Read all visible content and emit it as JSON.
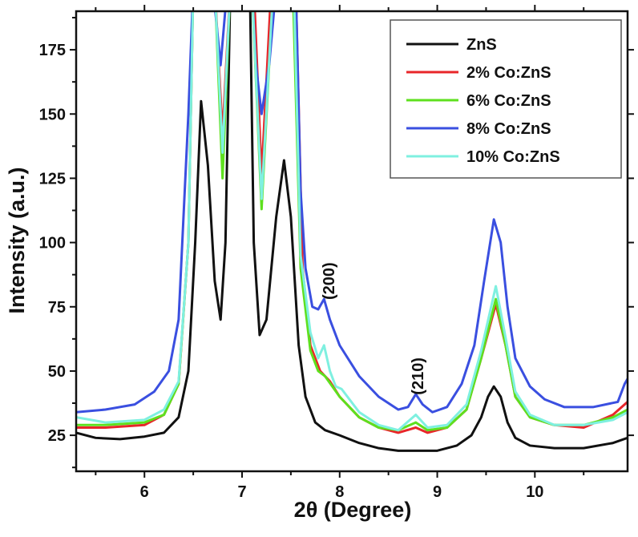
{
  "chart_data": {
    "type": "line",
    "title": "",
    "xlabel": "2θ (Degree)",
    "ylabel": "Intensity (a.u.)",
    "xlim": [
      5.3,
      10.95
    ],
    "ylim": [
      11,
      190
    ],
    "x_ticks": [
      6,
      7,
      8,
      9,
      10
    ],
    "y_ticks": [
      25,
      50,
      75,
      100,
      125,
      150,
      175
    ],
    "grid": false,
    "legend_position": "top-right",
    "annotations": [
      {
        "text": "(200)",
        "x": 7.88,
        "y": 85
      },
      {
        "text": "(210)",
        "x": 8.8,
        "y": 48
      }
    ],
    "series": [
      {
        "name": "ZnS",
        "color": "#111111",
        "points": [
          [
            5.3,
            26
          ],
          [
            5.5,
            24
          ],
          [
            5.75,
            23.5
          ],
          [
            6,
            24.5
          ],
          [
            6.2,
            26
          ],
          [
            6.35,
            32
          ],
          [
            6.45,
            50
          ],
          [
            6.52,
            100
          ],
          [
            6.58,
            155
          ],
          [
            6.65,
            130
          ],
          [
            6.72,
            85
          ],
          [
            6.78,
            70
          ],
          [
            6.83,
            100
          ],
          [
            6.88,
            200
          ],
          [
            7.08,
            200
          ],
          [
            7.12,
            100
          ],
          [
            7.18,
            64
          ],
          [
            7.25,
            70
          ],
          [
            7.35,
            110
          ],
          [
            7.43,
            132
          ],
          [
            7.5,
            110
          ],
          [
            7.58,
            60
          ],
          [
            7.65,
            40
          ],
          [
            7.75,
            30
          ],
          [
            7.85,
            27
          ],
          [
            8.0,
            25
          ],
          [
            8.2,
            22
          ],
          [
            8.4,
            20
          ],
          [
            8.6,
            19
          ],
          [
            8.8,
            19
          ],
          [
            9.0,
            19
          ],
          [
            9.2,
            21
          ],
          [
            9.35,
            25
          ],
          [
            9.45,
            32
          ],
          [
            9.52,
            40
          ],
          [
            9.58,
            44
          ],
          [
            9.65,
            40
          ],
          [
            9.72,
            30
          ],
          [
            9.8,
            24
          ],
          [
            9.95,
            21
          ],
          [
            10.2,
            20
          ],
          [
            10.5,
            20
          ],
          [
            10.8,
            22
          ],
          [
            10.95,
            24
          ]
        ]
      },
      {
        "name": "2% Co:ZnS",
        "color": "#e8262a",
        "points": [
          [
            5.3,
            28
          ],
          [
            5.6,
            28
          ],
          [
            6,
            29
          ],
          [
            6.2,
            33
          ],
          [
            6.35,
            45
          ],
          [
            6.45,
            100
          ],
          [
            6.5,
            200
          ],
          [
            6.72,
            200
          ],
          [
            6.8,
            142
          ],
          [
            6.88,
            200
          ],
          [
            7.12,
            200
          ],
          [
            7.2,
            126
          ],
          [
            7.3,
            200
          ],
          [
            7.55,
            200
          ],
          [
            7.62,
            90
          ],
          [
            7.7,
            60
          ],
          [
            7.8,
            50
          ],
          [
            7.9,
            46
          ],
          [
            8.0,
            40
          ],
          [
            8.2,
            32
          ],
          [
            8.4,
            28
          ],
          [
            8.6,
            26
          ],
          [
            8.78,
            28
          ],
          [
            8.9,
            26
          ],
          [
            9.1,
            28
          ],
          [
            9.3,
            35
          ],
          [
            9.45,
            55
          ],
          [
            9.6,
            76
          ],
          [
            9.7,
            60
          ],
          [
            9.8,
            40
          ],
          [
            9.95,
            32
          ],
          [
            10.2,
            29
          ],
          [
            10.5,
            28
          ],
          [
            10.8,
            33
          ],
          [
            10.95,
            38
          ]
        ]
      },
      {
        "name": "6% Co:ZnS",
        "color": "#5ee01e",
        "points": [
          [
            5.3,
            29
          ],
          [
            5.6,
            29
          ],
          [
            6,
            30
          ],
          [
            6.2,
            33
          ],
          [
            6.35,
            45
          ],
          [
            6.45,
            100
          ],
          [
            6.5,
            200
          ],
          [
            6.72,
            200
          ],
          [
            6.8,
            125
          ],
          [
            6.88,
            200
          ],
          [
            7.1,
            200
          ],
          [
            7.2,
            113
          ],
          [
            7.32,
            200
          ],
          [
            7.52,
            200
          ],
          [
            7.6,
            90
          ],
          [
            7.7,
            58
          ],
          [
            7.78,
            50
          ],
          [
            7.85,
            48
          ],
          [
            8.0,
            40
          ],
          [
            8.2,
            32
          ],
          [
            8.4,
            28
          ],
          [
            8.6,
            27
          ],
          [
            8.78,
            30
          ],
          [
            8.9,
            27
          ],
          [
            9.1,
            28
          ],
          [
            9.3,
            35
          ],
          [
            9.45,
            55
          ],
          [
            9.6,
            78
          ],
          [
            9.7,
            60
          ],
          [
            9.8,
            40
          ],
          [
            9.95,
            32
          ],
          [
            10.2,
            29
          ],
          [
            10.5,
            29
          ],
          [
            10.8,
            32
          ],
          [
            10.95,
            35
          ]
        ]
      },
      {
        "name": "8% Co:ZnS",
        "color": "#3a4fe0",
        "points": [
          [
            5.3,
            34
          ],
          [
            5.6,
            35
          ],
          [
            5.9,
            37
          ],
          [
            6.1,
            42
          ],
          [
            6.25,
            50
          ],
          [
            6.35,
            70
          ],
          [
            6.45,
            150
          ],
          [
            6.5,
            200
          ],
          [
            6.7,
            200
          ],
          [
            6.78,
            169
          ],
          [
            6.85,
            200
          ],
          [
            7.1,
            200
          ],
          [
            7.14,
            170
          ],
          [
            7.2,
            150
          ],
          [
            7.28,
            170
          ],
          [
            7.35,
            200
          ],
          [
            7.55,
            200
          ],
          [
            7.6,
            120
          ],
          [
            7.65,
            90
          ],
          [
            7.72,
            75
          ],
          [
            7.78,
            74
          ],
          [
            7.84,
            78
          ],
          [
            7.9,
            70
          ],
          [
            8.0,
            60
          ],
          [
            8.2,
            48
          ],
          [
            8.4,
            40
          ],
          [
            8.6,
            35
          ],
          [
            8.7,
            36
          ],
          [
            8.78,
            41
          ],
          [
            8.85,
            37
          ],
          [
            8.95,
            34
          ],
          [
            9.1,
            36
          ],
          [
            9.25,
            45
          ],
          [
            9.38,
            60
          ],
          [
            9.48,
            85
          ],
          [
            9.58,
            109
          ],
          [
            9.65,
            100
          ],
          [
            9.72,
            75
          ],
          [
            9.8,
            55
          ],
          [
            9.95,
            44
          ],
          [
            10.1,
            39
          ],
          [
            10.3,
            36
          ],
          [
            10.6,
            36
          ],
          [
            10.85,
            38
          ],
          [
            10.92,
            45
          ],
          [
            10.95,
            47
          ]
        ]
      },
      {
        "name": "10% Co:ZnS",
        "color": "#7ff0e0",
        "points": [
          [
            5.3,
            32
          ],
          [
            5.6,
            30
          ],
          [
            6,
            31
          ],
          [
            6.2,
            35
          ],
          [
            6.35,
            46
          ],
          [
            6.45,
            100
          ],
          [
            6.5,
            200
          ],
          [
            6.72,
            200
          ],
          [
            6.8,
            135
          ],
          [
            6.88,
            200
          ],
          [
            7.1,
            200
          ],
          [
            7.2,
            117
          ],
          [
            7.32,
            200
          ],
          [
            7.53,
            200
          ],
          [
            7.6,
            95
          ],
          [
            7.7,
            65
          ],
          [
            7.78,
            55
          ],
          [
            7.84,
            60
          ],
          [
            7.9,
            50
          ],
          [
            7.96,
            44
          ],
          [
            8.02,
            43
          ],
          [
            8.2,
            34
          ],
          [
            8.4,
            29
          ],
          [
            8.6,
            27
          ],
          [
            8.78,
            33
          ],
          [
            8.9,
            28
          ],
          [
            9.1,
            29
          ],
          [
            9.3,
            37
          ],
          [
            9.45,
            58
          ],
          [
            9.6,
            83
          ],
          [
            9.7,
            63
          ],
          [
            9.8,
            42
          ],
          [
            9.95,
            33
          ],
          [
            10.2,
            29
          ],
          [
            10.5,
            29
          ],
          [
            10.8,
            31
          ],
          [
            10.95,
            34
          ]
        ]
      }
    ]
  }
}
